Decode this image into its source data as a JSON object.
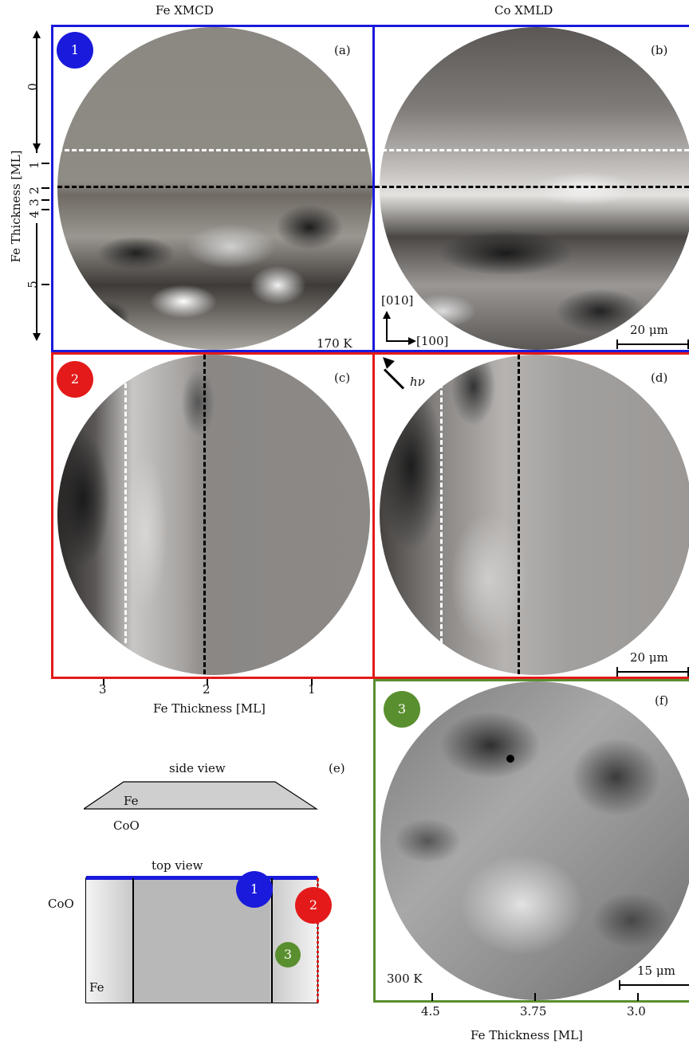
{
  "columns": {
    "left": "Fe XMCD",
    "right": "Co XMLD"
  },
  "left_axis": {
    "label": "Fe Thickness [ML]",
    "ticks": [
      "0",
      "1",
      "2",
      "3",
      "4",
      "5"
    ]
  },
  "panels": {
    "a": {
      "letter": "(a)",
      "badge": "1",
      "temperature": "170 K"
    },
    "b": {
      "letter": "(b)",
      "scale": "20 μm",
      "axes": {
        "y": "[010]",
        "x": "[100]"
      },
      "photon": "hν"
    },
    "c": {
      "letter": "(c)",
      "badge": "2"
    },
    "d": {
      "letter": "(d)",
      "scale": "20 μm"
    },
    "e": {
      "letter": "(e)",
      "side_view": "side view",
      "fe": "Fe",
      "coo": "CoO",
      "top_view": "top view",
      "coo_top": "CoO",
      "fe_top": "Fe",
      "badges": [
        "1",
        "2",
        "3"
      ]
    },
    "f": {
      "letter": "(f)",
      "badge": "3",
      "temperature": "300 K",
      "scale": "15 μm"
    }
  },
  "bottom_axis_c": {
    "label": "Fe Thickness [ML]",
    "ticks": [
      "3",
      "2",
      "1"
    ]
  },
  "bottom_axis_f": {
    "label": "Fe Thickness [ML]",
    "ticks": [
      "4.5",
      "3.75",
      "3.0"
    ]
  },
  "colors": {
    "blue": "#1a1adc",
    "red": "#e41a1a",
    "green": "#5a8f2f"
  }
}
